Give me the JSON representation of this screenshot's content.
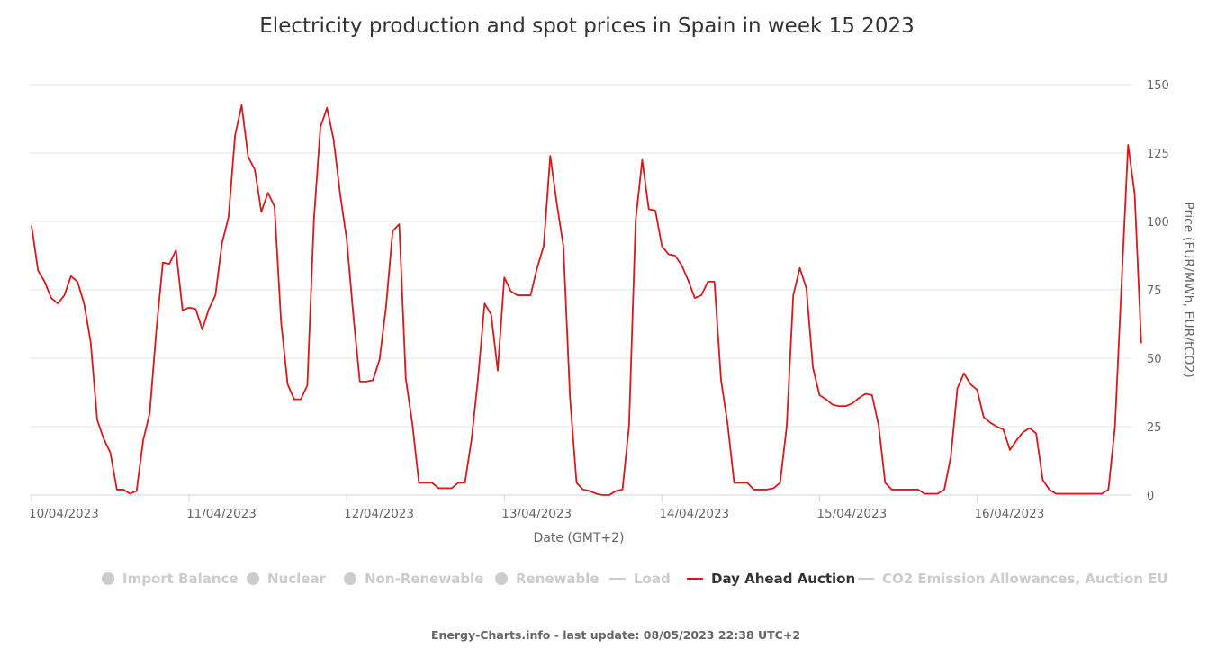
{
  "chart_data": {
    "type": "line",
    "title": "Electricity production and spot prices in Spain in week 15 2023",
    "xlabel": "Date (GMT+2)",
    "ylabel": "Price (EUR/MWh, EUR/tCO2)",
    "ylim": [
      0,
      150
    ],
    "yticks": [
      0,
      25,
      50,
      75,
      100,
      125,
      150
    ],
    "x_start": "10/04/2023 00:00",
    "x_step_hours": 1,
    "xtick_labels": [
      "10/04/2023",
      "11/04/2023",
      "12/04/2023",
      "13/04/2023",
      "14/04/2023",
      "15/04/2023",
      "16/04/2023"
    ],
    "grid": true,
    "legend_position": "bottom",
    "series": [
      {
        "name": "Day Ahead Auction",
        "color": "#d7191c",
        "values": [
          98.5,
          82,
          78,
          72,
          70,
          73,
          80,
          78,
          70,
          56,
          27.5,
          20.5,
          15.5,
          2,
          2,
          0.5,
          1.5,
          20,
          30,
          60,
          85,
          84.5,
          89.5,
          67.5,
          68.5,
          68,
          60.5,
          68,
          73,
          92,
          101.5,
          131.5,
          142.5,
          123.5,
          119,
          103.5,
          110.5,
          105.5,
          63.5,
          40.5,
          35,
          35,
          40,
          100.5,
          134.5,
          141.5,
          130,
          110,
          93.5,
          66,
          41.5,
          41.5,
          42,
          49.5,
          69,
          96.5,
          99,
          42.5,
          26,
          4.5,
          4.5,
          4.5,
          2.5,
          2.5,
          2.5,
          4.5,
          4.5,
          20,
          42.5,
          70,
          66,
          45.5,
          79.5,
          74.5,
          73,
          73,
          73,
          83,
          91,
          124,
          106.5,
          91,
          36,
          4.5,
          2,
          1.5,
          0.5,
          0,
          0,
          1.5,
          2,
          25.5,
          100.5,
          122.5,
          104.5,
          104,
          91,
          88,
          87.5,
          84,
          78.5,
          72,
          73,
          78,
          78,
          42,
          26,
          4.5,
          4.5,
          4.5,
          2,
          2,
          2,
          2.5,
          4.5,
          25,
          73,
          83,
          75.5,
          46.5,
          36.5,
          35,
          33,
          32.5,
          32.5,
          33.5,
          35.5,
          37,
          36.5,
          25.5,
          4.5,
          2,
          2,
          2,
          2,
          2,
          0.5,
          0.5,
          0.5,
          2,
          14,
          39,
          44.5,
          40.5,
          38.5,
          28.5,
          26.5,
          25,
          24,
          16.5,
          20,
          23,
          24.5,
          22.5,
          5.5,
          2,
          0.5,
          0.5,
          0.5,
          0.5,
          0.5,
          0.5,
          0.5,
          0.5,
          2,
          25,
          77,
          128,
          110,
          55.5
        ]
      }
    ]
  },
  "legend": [
    {
      "label": "Import Balance",
      "marker": "circle",
      "active": false
    },
    {
      "label": "Nuclear",
      "marker": "circle",
      "active": false
    },
    {
      "label": "Non-Renewable",
      "marker": "circle",
      "active": false
    },
    {
      "label": "Renewable",
      "marker": "circle",
      "active": false
    },
    {
      "label": "Load",
      "marker": "line",
      "active": false
    },
    {
      "label": "Day Ahead Auction",
      "marker": "line",
      "active": true
    },
    {
      "label": "CO2 Emission Allowances, Auction EU",
      "marker": "line",
      "active": false
    }
  ],
  "credits": "Energy-Charts.info - last update: 08/05/2023 22:38 UTC+2"
}
